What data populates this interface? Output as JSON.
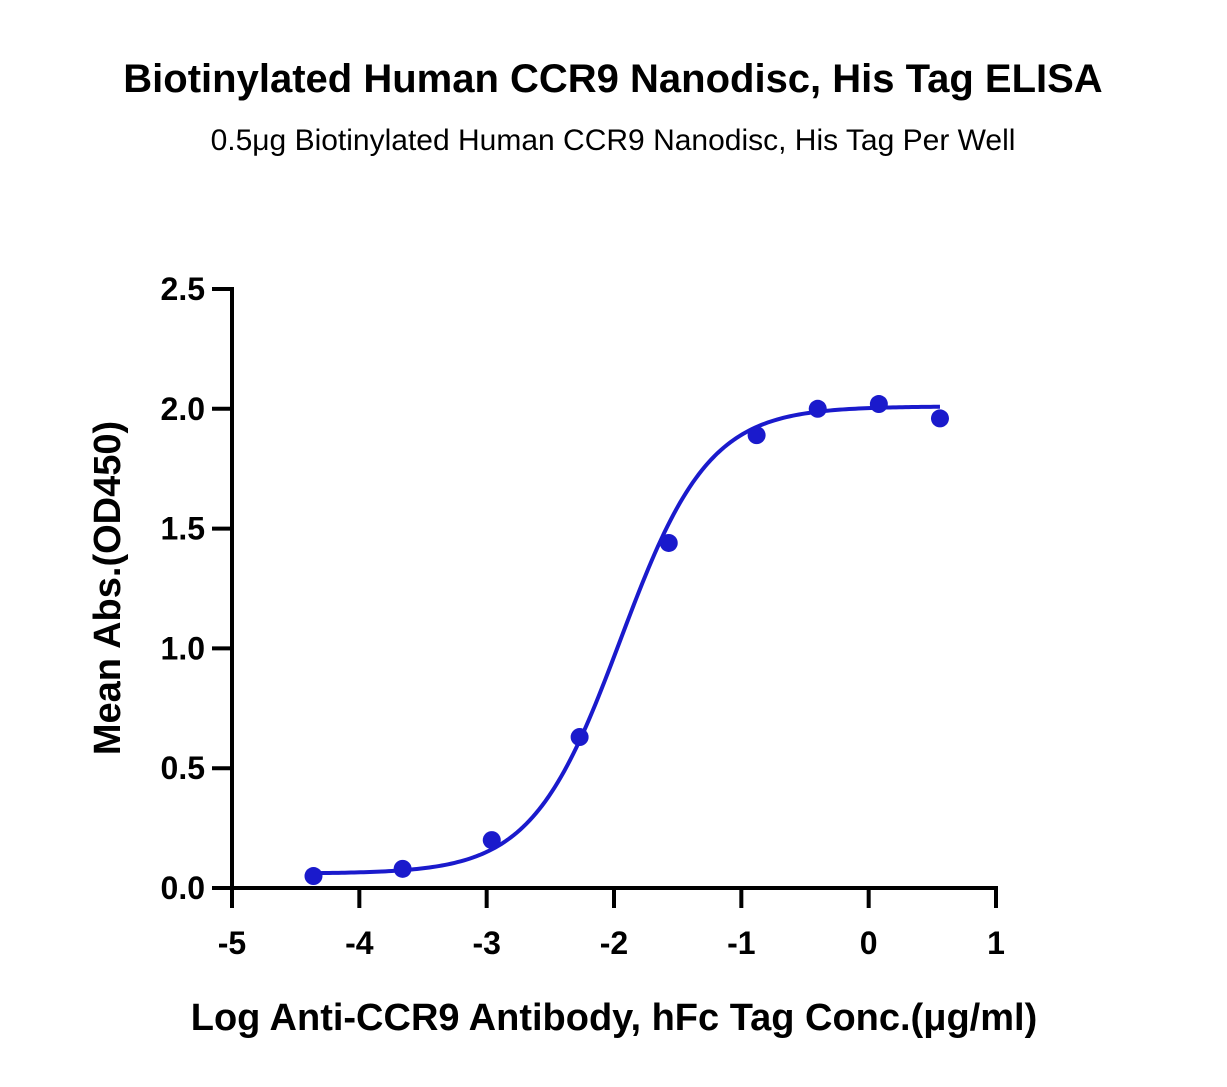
{
  "chart_data": {
    "type": "scatter",
    "title": "Biotinylated Human CCR9 Nanodisc, His Tag ELISA",
    "subtitle": "0.5μg Biotinylated Human CCR9 Nanodisc, His Tag Per Well",
    "xlabel": "Log Anti-CCR9 Antibody, hFc Tag Conc.(μg/ml)",
    "ylabel": "Mean Abs.(OD450)",
    "xlim": [
      -5,
      1
    ],
    "ylim": [
      0,
      2.5
    ],
    "x_ticks": [
      -5,
      -4,
      -3,
      -2,
      -1,
      0,
      1
    ],
    "x_tick_labels": [
      "-5",
      "-4",
      "-3",
      "-2",
      "-1",
      "0",
      "1"
    ],
    "y_ticks": [
      0,
      0.5,
      1.0,
      1.5,
      2.0,
      2.5
    ],
    "y_tick_labels": [
      "0.0",
      "0.5",
      "1.0",
      "1.5",
      "2.0",
      "2.5"
    ],
    "grid": false,
    "series": [
      {
        "points": [
          {
            "x": -4.36,
            "y": 0.05
          },
          {
            "x": -3.66,
            "y": 0.08
          },
          {
            "x": -2.96,
            "y": 0.2
          },
          {
            "x": -2.27,
            "y": 0.63
          },
          {
            "x": -1.57,
            "y": 1.44
          },
          {
            "x": -0.88,
            "y": 1.89
          },
          {
            "x": -0.4,
            "y": 2.0
          },
          {
            "x": 0.08,
            "y": 2.02
          },
          {
            "x": 0.56,
            "y": 1.96
          }
        ],
        "fit": {
          "model": "4PL",
          "bottom": 0.06,
          "top": 2.01,
          "log_ec50": -1.95,
          "hill_slope": 1.25,
          "x_range": [
            -4.36,
            0.56
          ]
        },
        "color": "#1a1acc"
      }
    ]
  }
}
